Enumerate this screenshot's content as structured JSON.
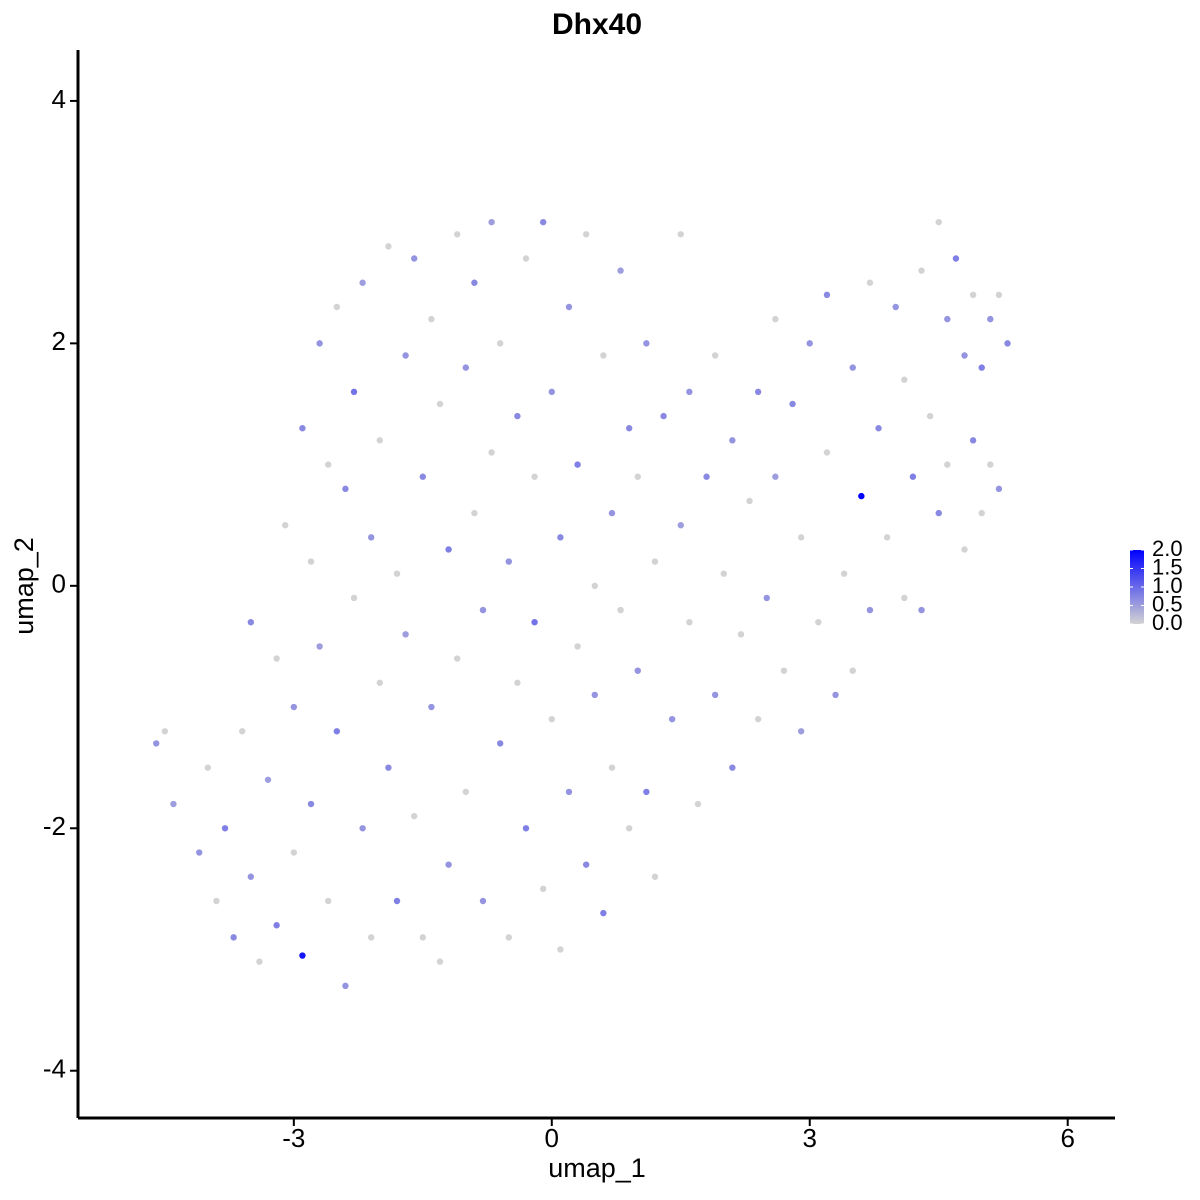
{
  "chart_data": {
    "type": "scatter",
    "title": "Dhx40",
    "x_label": "umap_1",
    "y_label": "umap_2",
    "xlim": [
      -5.51,
      6.55
    ],
    "ylim": [
      -4.39,
      4.42
    ],
    "xticks": [
      -3,
      0,
      3,
      6
    ],
    "yticks": [
      -4,
      -2,
      0,
      2,
      4
    ],
    "color_low": "#d3d3d3",
    "color_high": "#0000ff",
    "clim": [
      0,
      2
    ],
    "cticks": [
      {
        "value": 0,
        "label": "0.0"
      },
      {
        "value": 0.5,
        "label": "0.5"
      },
      {
        "value": 1,
        "label": "1.0"
      },
      {
        "value": 1.5,
        "label": "1.5"
      },
      {
        "value": 2,
        "label": "2.0"
      }
    ],
    "x": [
      -4.6,
      -4.5,
      -4.4,
      -4.1,
      -4.0,
      -3.9,
      -3.8,
      -3.7,
      -3.6,
      -3.5,
      -3.5,
      -3.4,
      -3.3,
      -3.2,
      -3.2,
      -3.1,
      -3.0,
      -3.0,
      -2.9,
      -2.9,
      -2.8,
      -2.8,
      -2.7,
      -2.7,
      -2.6,
      -2.6,
      -2.5,
      -2.5,
      -2.4,
      -2.4,
      -2.3,
      -2.3,
      -2.2,
      -2.2,
      -2.1,
      -2.1,
      -2.0,
      -2.0,
      -1.9,
      -1.9,
      -1.8,
      -1.8,
      -1.7,
      -1.7,
      -1.6,
      -1.6,
      -1.5,
      -1.5,
      -1.4,
      -1.4,
      -1.3,
      -1.3,
      -1.2,
      -1.2,
      -1.1,
      -1.1,
      -1.0,
      -1.0,
      -0.9,
      -0.9,
      -0.8,
      -0.8,
      -0.7,
      -0.7,
      -0.6,
      -0.6,
      -0.5,
      -0.5,
      -0.4,
      -0.4,
      -0.3,
      -0.3,
      -0.2,
      -0.2,
      -0.1,
      -0.1,
      0.0,
      0.0,
      0.1,
      0.1,
      0.2,
      0.2,
      0.3,
      0.3,
      0.4,
      0.4,
      0.5,
      0.5,
      0.6,
      0.6,
      0.7,
      0.7,
      0.8,
      0.8,
      0.9,
      0.9,
      1.0,
      1.0,
      1.1,
      1.1,
      1.2,
      1.2,
      1.3,
      1.4,
      1.5,
      1.5,
      1.6,
      1.6,
      1.7,
      1.8,
      1.9,
      1.9,
      2.0,
      2.1,
      2.1,
      2.2,
      2.3,
      2.4,
      2.4,
      2.5,
      2.6,
      2.6,
      2.7,
      2.8,
      2.9,
      2.9,
      3.0,
      3.1,
      3.2,
      3.2,
      3.3,
      3.4,
      3.5,
      3.5,
      3.6,
      3.7,
      3.7,
      3.8,
      3.9,
      4.0,
      4.1,
      4.1,
      4.2,
      4.3,
      4.3,
      4.4,
      4.5,
      4.5,
      4.6,
      4.6,
      4.7,
      4.8,
      4.8,
      4.9,
      4.9,
      5.0,
      5.0,
      5.1,
      5.1,
      5.2,
      5.2,
      5.3
    ],
    "y": [
      -1.3,
      -1.2,
      -1.8,
      -2.2,
      -1.5,
      -2.6,
      -2.0,
      -2.9,
      -1.2,
      -2.4,
      -0.3,
      -3.1,
      -1.6,
      -0.6,
      -2.8,
      0.5,
      -1.0,
      -2.2,
      -3.05,
      1.3,
      0.2,
      -1.8,
      2.0,
      -0.5,
      -2.6,
      1.0,
      -1.2,
      2.3,
      -3.3,
      0.8,
      -0.1,
      1.6,
      -2.0,
      2.5,
      -2.9,
      0.4,
      -0.8,
      1.2,
      2.8,
      -1.5,
      -2.6,
      0.1,
      1.9,
      -0.4,
      2.7,
      -1.9,
      0.9,
      -2.9,
      -1.0,
      2.2,
      -3.1,
      1.5,
      0.3,
      -2.3,
      2.9,
      -0.6,
      1.8,
      -1.7,
      2.5,
      0.6,
      -2.6,
      -0.2,
      1.1,
      3.0,
      -1.3,
      2.0,
      -2.9,
      0.2,
      1.4,
      -0.8,
      2.7,
      -2.0,
      0.9,
      -0.3,
      3.0,
      -2.5,
      1.6,
      -1.1,
      0.4,
      -3.0,
      2.3,
      -1.7,
      -0.5,
      1.0,
      2.9,
      -2.3,
      0.0,
      -0.9,
      1.9,
      -2.7,
      0.6,
      -1.5,
      2.6,
      -0.2,
      1.3,
      -2.0,
      -0.7,
      0.9,
      2.0,
      -1.7,
      0.2,
      -2.4,
      1.4,
      -1.1,
      0.5,
      2.9,
      -0.3,
      1.6,
      -1.8,
      0.9,
      -0.9,
      1.9,
      0.1,
      -1.5,
      1.2,
      -0.4,
      0.7,
      1.6,
      -1.1,
      -0.1,
      2.2,
      0.9,
      -0.7,
      1.5,
      0.4,
      -1.2,
      2.0,
      -0.3,
      1.1,
      2.4,
      -0.9,
      0.1,
      1.8,
      -0.7,
      0.74,
      2.5,
      -0.2,
      1.3,
      0.4,
      2.3,
      -0.1,
      1.7,
      0.9,
      2.6,
      -0.2,
      1.4,
      3.0,
      0.6,
      2.2,
      1.0,
      2.7,
      0.3,
      1.9,
      2.4,
      1.2,
      0.6,
      1.8,
      2.2,
      1.0,
      0.8,
      2.4,
      2.0
    ],
    "values": [
      0.6,
      0,
      0.5,
      0.6,
      0,
      0,
      0.8,
      0.7,
      0,
      0.6,
      0.7,
      0,
      0.5,
      0,
      0.8,
      0,
      0.6,
      0,
      1.8,
      0.7,
      0,
      0.7,
      0.6,
      0.5,
      0,
      0,
      0.8,
      0,
      0.6,
      0.7,
      0,
      0.9,
      0.6,
      0.5,
      0,
      0.6,
      0,
      0,
      0,
      0.7,
      0.8,
      0,
      0.6,
      0.5,
      0.6,
      0,
      0.7,
      0,
      0.6,
      0,
      0,
      0,
      0.8,
      0.6,
      0,
      0,
      0.6,
      0,
      0.7,
      0,
      0.6,
      0.6,
      0,
      0.5,
      0.7,
      0,
      0,
      0.6,
      0.7,
      0,
      0,
      0.8,
      0,
      0.9,
      0.7,
      0,
      0.6,
      0,
      0.7,
      0,
      0.6,
      0.6,
      0,
      0.8,
      0,
      0.7,
      0,
      0.6,
      0,
      0.8,
      0.6,
      0,
      0.5,
      0,
      0.7,
      0,
      0.6,
      0,
      0.6,
      0.8,
      0,
      0,
      0.7,
      0.6,
      0.5,
      0,
      0,
      0.6,
      0,
      0.7,
      0.6,
      0,
      0,
      0.7,
      0.6,
      0,
      0,
      0.7,
      0,
      0.6,
      0,
      0.5,
      0,
      0.7,
      0,
      0.5,
      0.6,
      0,
      0,
      0.7,
      0.6,
      0,
      0.6,
      0,
      2.0,
      0,
      0.6,
      0.7,
      0,
      0.6,
      0,
      0,
      0.8,
      0,
      0.6,
      0,
      0,
      0.7,
      0.6,
      0,
      0.8,
      0,
      0.6,
      0,
      0.7,
      0,
      0.8,
      0.6,
      0,
      0.6,
      0,
      0.7
    ]
  }
}
